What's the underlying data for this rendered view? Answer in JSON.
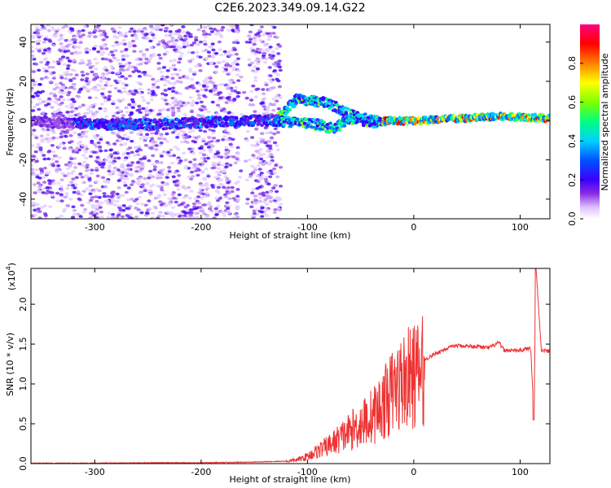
{
  "title": "C2E6.2023.349.09.14.G22",
  "chart_data": [
    {
      "type": "heatmap",
      "xlabel": "Height of straight line (km)",
      "ylabel": "Frequency (Hz)",
      "xlim": [
        -360,
        128
      ],
      "ylim": [
        -50,
        49
      ],
      "xticks": [
        -300,
        -200,
        -100,
        0,
        100
      ],
      "yticks": [
        -40,
        -20,
        0,
        20,
        40
      ],
      "colorbar": {
        "label": "Normalized spectral amplitude",
        "range": [
          0,
          1
        ],
        "ticks": [
          0.0,
          0.2,
          0.4,
          0.6,
          0.8
        ],
        "colors": [
          "#ffffff",
          "#d9b8ff",
          "#8a2be2",
          "#3b00ff",
          "#0050ff",
          "#00c8ff",
          "#00ff80",
          "#80ff00",
          "#ffff00",
          "#ff8000",
          "#ff0000",
          "#ff0080"
        ]
      },
      "series": [
        {
          "x": [
            -360,
            -300,
            -250,
            -200,
            -150,
            -130,
            -110,
            -80,
            -60,
            -40,
            -20,
            0,
            40,
            80,
            100,
            128
          ],
          "y": [
            0,
            -2,
            -2,
            -1,
            0,
            0,
            11,
            9,
            3,
            0,
            0,
            0,
            1,
            2,
            2,
            1
          ]
        },
        {
          "x": [
            -130,
            -110,
            -90,
            -75,
            -60,
            -40,
            -20
          ],
          "y": [
            0,
            -1,
            -2,
            -4,
            1,
            -1,
            0
          ]
        }
      ]
    },
    {
      "type": "line",
      "xlabel": "Height of straight line (km)",
      "ylabel": "SNR (10 * v/v)",
      "yscale_label": "(x10",
      "yscale_exp": "4",
      "xlim": [
        -360,
        128
      ],
      "ylim": [
        0,
        2.45
      ],
      "xticks": [
        -300,
        -200,
        -100,
        0,
        100
      ],
      "yticks": [
        0.0,
        0.5,
        1.0,
        1.5,
        2.0
      ],
      "color": "#ee3333",
      "series": [
        {
          "x": [
            -360,
            -300,
            -250,
            -200,
            -150,
            -120,
            -110,
            -100,
            -90,
            -80,
            -70,
            -60,
            -50,
            -40,
            -30,
            -20,
            -10,
            0,
            10,
            20,
            30,
            40,
            60,
            70,
            75,
            80,
            85,
            100,
            110,
            113,
            115,
            120,
            128
          ],
          "y": [
            0.005,
            0.005,
            0.01,
            0.01,
            0.02,
            0.03,
            0.05,
            0.1,
            0.18,
            0.25,
            0.35,
            0.45,
            0.55,
            0.65,
            0.8,
            1.0,
            1.15,
            1.22,
            1.3,
            1.38,
            1.44,
            1.48,
            1.47,
            1.45,
            1.48,
            1.52,
            1.42,
            1.42,
            1.45,
            0.6,
            2.45,
            1.42,
            1.41
          ]
        }
      ]
    }
  ]
}
